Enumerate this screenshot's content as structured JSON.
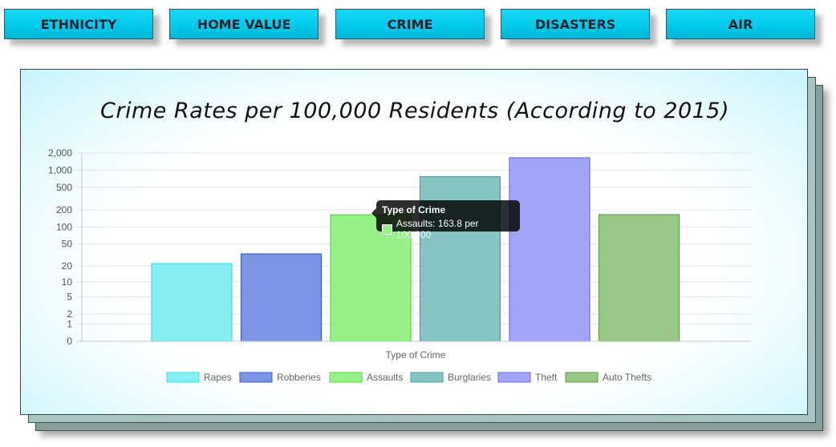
{
  "nav": {
    "items": [
      {
        "label": "ETHNICITY"
      },
      {
        "label": "HOME VALUE"
      },
      {
        "label": "CRIME"
      },
      {
        "label": "DISASTERS"
      },
      {
        "label": "AIR"
      }
    ]
  },
  "tooltip": {
    "title": "Type of Crime",
    "text": "Assaults: 163.8 per 100,000",
    "swatch_color": "#98f088"
  },
  "chart_data": {
    "type": "bar",
    "title": "Crime Rates per 100,000 Residents (According to 2015)",
    "xlabel": "Type of Crime",
    "ylabel": "",
    "yscale": "log",
    "yticks": [
      0,
      1,
      2,
      5,
      10,
      20,
      50,
      100,
      200,
      500,
      1000,
      2000
    ],
    "ytick_labels": [
      "0",
      "1",
      "2",
      "5",
      "10",
      "20",
      "50",
      "100",
      "200",
      "500",
      "1,000",
      "2,000"
    ],
    "ylim": [
      0,
      2000
    ],
    "grid": true,
    "legend_position": "bottom",
    "series": [
      {
        "name": "Rapes",
        "value": 22,
        "fill": "#86eef2",
        "stroke": "#3ddde6"
      },
      {
        "name": "Robberies",
        "value": 33,
        "fill": "#7b95e2",
        "stroke": "#3d5ed0"
      },
      {
        "name": "Assaults",
        "value": 163.8,
        "fill": "#98f088",
        "stroke": "#52dc3c"
      },
      {
        "name": "Burglaries",
        "value": 770,
        "fill": "#85c4c2",
        "stroke": "#4f9f9c"
      },
      {
        "name": "Theft",
        "value": 1650,
        "fill": "#a3a3f8",
        "stroke": "#6b6bea"
      },
      {
        "name": "Auto Thefts",
        "value": 165,
        "fill": "#98c788",
        "stroke": "#5f9f4c"
      }
    ]
  }
}
